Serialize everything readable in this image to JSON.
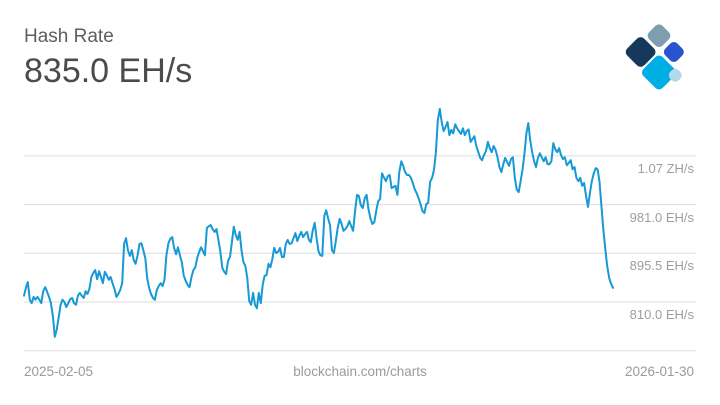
{
  "header": {
    "title": "Hash Rate",
    "value": "835.0 EH/s"
  },
  "logo": {
    "colors": {
      "navy": "#16395B",
      "slate": "#7E9DAE",
      "royal": "#2A53CF",
      "cyan": "#00AEE6",
      "light": "#B4DAEA"
    }
  },
  "footer": {
    "start_date": "2025-02-05",
    "watermark": "blockchain.com/charts",
    "end_date": "2026-01-30"
  },
  "chart_data": {
    "type": "line",
    "title": "Hash Rate",
    "current_value": "835.0 EH/s",
    "unit": "EH/s",
    "xlabel": "",
    "ylabel": "",
    "x_range": [
      "2025-02-05",
      "2026-01-30"
    ],
    "ylim": [
      700,
      1170
    ],
    "grid": true,
    "legend": false,
    "line_color": "#1799D6",
    "grid_color": "#DEDEDE",
    "y_ticks": [
      {
        "label": "1.07 ZH/s",
        "value": 1066.5
      },
      {
        "label": "981.0 EH/s",
        "value": 981.0
      },
      {
        "label": "895.5 EH/s",
        "value": 895.5
      },
      {
        "label": "810.0 EH/s",
        "value": 810.0
      },
      {
        "label": "",
        "value": 724.5
      }
    ],
    "values": [
      821,
      835,
      845,
      814,
      808,
      819,
      814,
      819,
      814,
      808,
      829,
      836,
      828,
      819,
      808,
      785,
      749,
      761,
      782,
      805,
      814,
      810,
      801,
      808,
      815,
      817,
      808,
      805,
      821,
      826,
      821,
      817,
      829,
      824,
      833,
      854,
      861,
      866,
      850,
      864,
      854,
      843,
      863,
      857,
      849,
      854,
      843,
      833,
      819,
      824,
      831,
      843,
      912,
      922,
      901,
      891,
      901,
      884,
      877,
      892,
      912,
      913,
      901,
      887,
      852,
      835,
      824,
      817,
      814,
      831,
      838,
      843,
      838,
      849,
      892,
      913,
      921,
      924,
      905,
      894,
      906,
      892,
      880,
      856,
      847,
      840,
      836,
      854,
      866,
      871,
      887,
      898,
      906,
      899,
      892,
      940,
      943,
      945,
      938,
      933,
      938,
      919,
      899,
      870,
      863,
      859,
      882,
      889,
      915,
      942,
      928,
      919,
      933,
      901,
      880,
      873,
      852,
      812,
      805,
      826,
      805,
      799,
      826,
      808,
      840,
      856,
      857,
      877,
      871,
      885,
      905,
      896,
      898,
      905,
      889,
      889,
      912,
      919,
      912,
      913,
      922,
      931,
      917,
      926,
      933,
      924,
      929,
      933,
      919,
      915,
      935,
      949,
      922,
      899,
      892,
      891,
      961,
      971,
      957,
      945,
      901,
      896,
      917,
      940,
      956,
      947,
      935,
      938,
      943,
      952,
      943,
      935,
      970,
      998,
      996,
      980,
      975,
      992,
      998,
      973,
      956,
      947,
      950,
      970,
      987,
      991,
      1036,
      1029,
      1022,
      1031,
      1033,
      1010,
      1012,
      1014,
      998,
      1038,
      1057,
      1049,
      1038,
      1033,
      1033,
      1028,
      1019,
      1008,
      1001,
      992,
      982,
      970,
      966,
      982,
      984,
      1021,
      1028,
      1042,
      1073,
      1129,
      1149,
      1126,
      1110,
      1117,
      1126,
      1103,
      1112,
      1106,
      1122,
      1115,
      1110,
      1105,
      1115,
      1103,
      1110,
      1113,
      1091,
      1096,
      1101,
      1084,
      1073,
      1063,
      1059,
      1068,
      1075,
      1091,
      1080,
      1073,
      1084,
      1077,
      1064,
      1047,
      1038,
      1052,
      1063,
      1056,
      1049,
      1061,
      1064,
      1028,
      1007,
      1003,
      1022,
      1042,
      1071,
      1106,
      1124,
      1094,
      1073,
      1057,
      1047,
      1063,
      1071,
      1064,
      1057,
      1064,
      1052,
      1052,
      1057,
      1089,
      1078,
      1073,
      1080,
      1068,
      1061,
      1064,
      1050,
      1054,
      1059,
      1043,
      1047,
      1028,
      1022,
      1028,
      1014,
      1019,
      996,
      977,
      1001,
      1022,
      1036,
      1045,
      1043,
      1021,
      977,
      936,
      903,
      873,
      852,
      842,
      835
    ]
  }
}
